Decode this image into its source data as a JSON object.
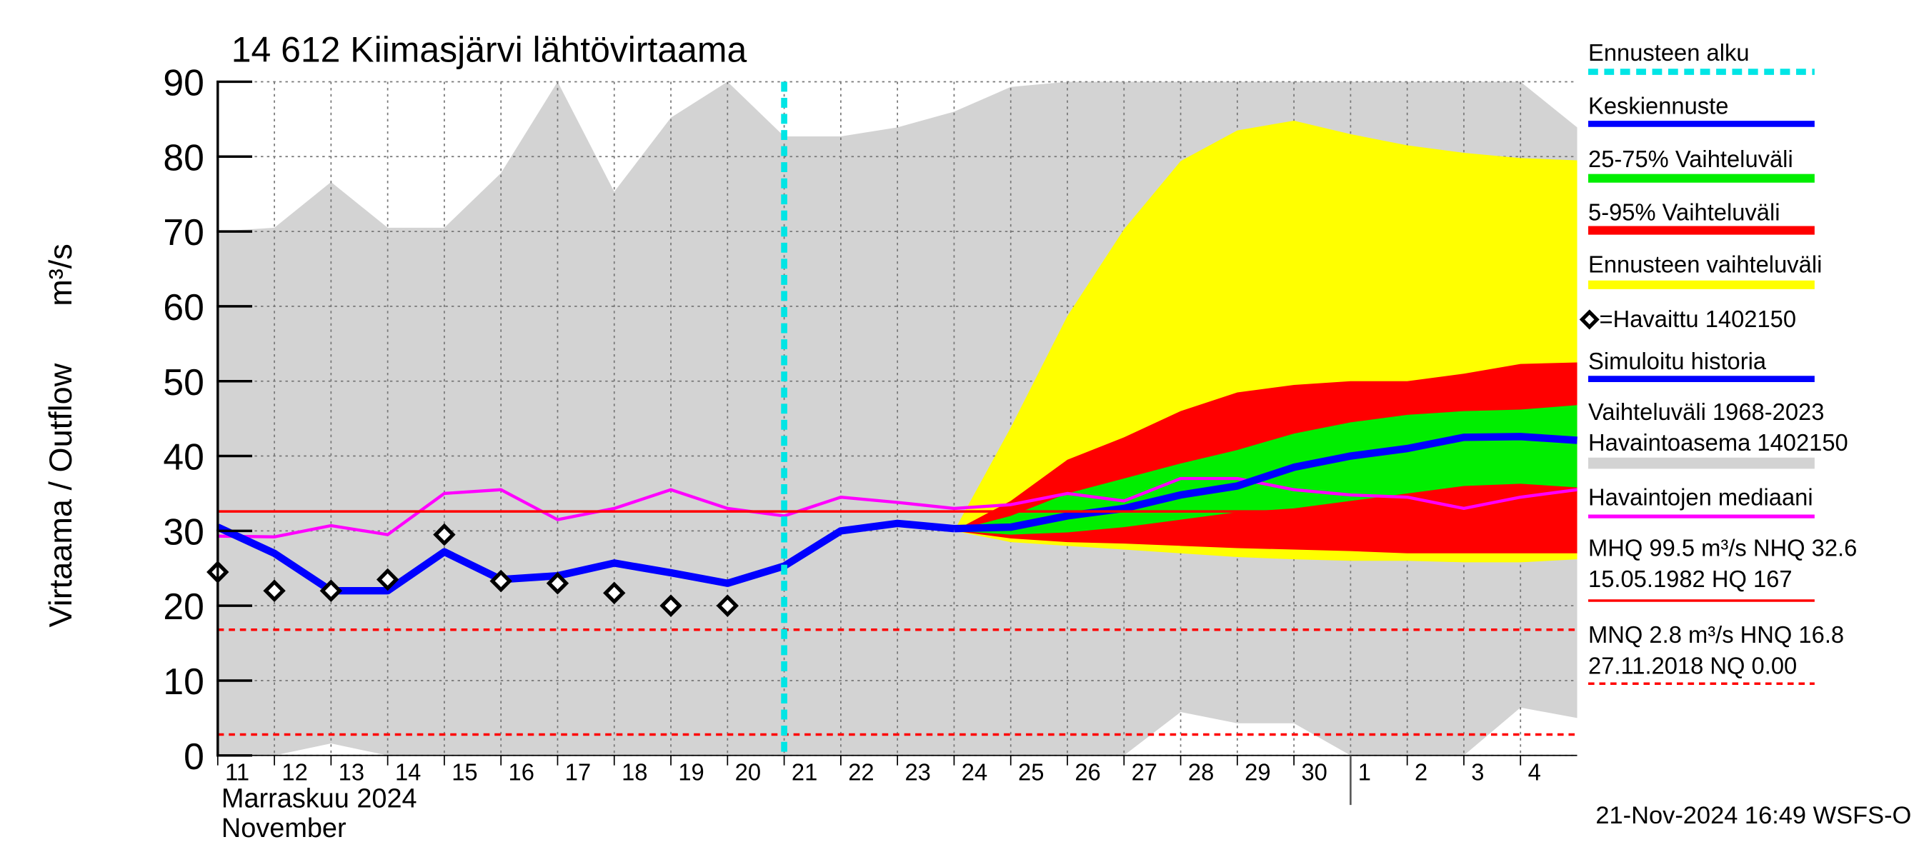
{
  "chart_data": {
    "type": "line",
    "title": "14 612 Kiimasjärvi lähtövirtaama",
    "ylabel": [
      "Virtaama / Outflow",
      "m³/s"
    ],
    "xlabel": [
      "Marraskuu 2024",
      "November"
    ],
    "footer": "21-Nov-2024 16:49 WSFS-O",
    "categories": [
      "11",
      "12",
      "13",
      "14",
      "15",
      "16",
      "17",
      "18",
      "19",
      "20",
      "21",
      "22",
      "23",
      "24",
      "25",
      "26",
      "27",
      "28",
      "29",
      "30",
      "1",
      "2",
      "3",
      "4",
      null
    ],
    "month_break_index": 20,
    "ylim": [
      0,
      90
    ],
    "yticks": [
      0,
      10,
      20,
      30,
      40,
      50,
      60,
      70,
      80,
      90
    ],
    "grid": true,
    "forecast_start": {
      "index": 10,
      "name": "Ennusteen alku",
      "color": "#00e5e5"
    },
    "series": [
      {
        "type": "band",
        "name": [
          "Vaihteluväli 1968-2023",
          " Havaintoasema 1402150"
        ],
        "color": "#d3d3d3",
        "upper": [
          70,
          70.5,
          76.6,
          70.5,
          70.5,
          77.8,
          90,
          75.3,
          85.2,
          90,
          82.7,
          82.7,
          83.9,
          86,
          89.3,
          90,
          90,
          90,
          90,
          90,
          90,
          90,
          90,
          90,
          83.9
        ],
        "lower": [
          0,
          0,
          1.6,
          0,
          0,
          0,
          0,
          0,
          0,
          0,
          0,
          0,
          0,
          0,
          0,
          0,
          0,
          5.8,
          4.3,
          4.3,
          0,
          0,
          0,
          6.4,
          5
        ]
      },
      {
        "type": "band",
        "name": "Ennusteen vaihteluväli",
        "color": "#ffff00",
        "upper": [
          null,
          null,
          null,
          null,
          null,
          null,
          null,
          null,
          null,
          null,
          null,
          null,
          null,
          30,
          43.8,
          58.7,
          70.3,
          79.4,
          83.5,
          84.8,
          83,
          81.5,
          80.5,
          79.8,
          79.5
        ],
        "lower": [
          null,
          null,
          null,
          null,
          null,
          null,
          null,
          null,
          null,
          null,
          null,
          null,
          null,
          30,
          28.5,
          28,
          27.5,
          27,
          26.5,
          26.2,
          26,
          26,
          25.8,
          25.8,
          26.2
        ]
      },
      {
        "type": "band",
        "name": "5-95% Vaihteluväli",
        "color": "#ff0000",
        "upper": [
          null,
          null,
          null,
          null,
          null,
          null,
          null,
          null,
          null,
          null,
          null,
          null,
          null,
          30,
          34,
          39.5,
          42.5,
          46,
          48.5,
          49.5,
          50,
          50,
          51,
          52.3,
          52.5
        ],
        "lower": [
          null,
          null,
          null,
          null,
          null,
          null,
          null,
          null,
          null,
          null,
          null,
          null,
          null,
          30,
          29,
          28.5,
          28.3,
          28,
          27.7,
          27.5,
          27.3,
          27,
          27,
          27,
          27
        ]
      },
      {
        "type": "band",
        "name": "25-75% Vaihteluväli",
        "color": "#00ee00",
        "upper": [
          null,
          null,
          null,
          null,
          null,
          null,
          null,
          null,
          null,
          null,
          null,
          null,
          null,
          30,
          32,
          35,
          37,
          39,
          40.8,
          43,
          44.5,
          45.5,
          46,
          46.2,
          46.8
        ],
        "lower": [
          null,
          null,
          null,
          null,
          null,
          null,
          null,
          null,
          null,
          null,
          null,
          null,
          null,
          30,
          29.5,
          29.8,
          30.5,
          31.5,
          32.5,
          33,
          34,
          35,
          36,
          36.3,
          35.8
        ]
      },
      {
        "type": "line",
        "name": "Havaintojen mediaani",
        "color": "#ff00ff",
        "width": 2.5,
        "values": [
          29.3,
          29.2,
          30.7,
          29.5,
          35,
          35.5,
          31.5,
          33,
          35.5,
          33,
          32,
          34.5,
          33.8,
          33,
          33.5,
          35,
          34,
          37,
          37,
          35.5,
          34.8,
          34.5,
          33,
          34.5,
          35.5
        ]
      },
      {
        "type": "line",
        "name": "Simuloitu historia",
        "color": "#0000ff",
        "width": 6,
        "values": [
          30.5,
          27,
          22,
          22,
          27.2,
          23.5,
          24,
          25.7,
          24.4,
          23,
          25.3,
          30,
          31,
          30.3,
          null,
          null,
          null,
          null,
          null,
          null,
          null,
          null,
          null,
          null,
          null
        ]
      },
      {
        "type": "line",
        "name": "Keskiennuste",
        "color": "#0000ff",
        "width": 6,
        "values": [
          null,
          null,
          null,
          null,
          null,
          null,
          null,
          null,
          null,
          null,
          null,
          null,
          null,
          30.3,
          30.5,
          32,
          33,
          34.8,
          36,
          38.5,
          40,
          41,
          42.5,
          42.6,
          42.1
        ]
      },
      {
        "type": "scatter",
        "name": "=Havaittu 1402150",
        "color": "#000000",
        "values": [
          24.5,
          22,
          22,
          23.5,
          29.5,
          23.3,
          23,
          21.7,
          20,
          20,
          null,
          null,
          null,
          null,
          null,
          null,
          null,
          null,
          null,
          null,
          null,
          null,
          null,
          null,
          null
        ]
      }
    ],
    "reference_lines": [
      {
        "value": 32.6,
        "color": "#ff0000",
        "style": "solid",
        "label": [
          "MHQ 99.5 m³/s NHQ 32.6",
          "15.05.1982 HQ  167"
        ]
      },
      {
        "value": 16.8,
        "color": "#ff0000",
        "style": "dashed",
        "label": [
          "MNQ  2.8 m³/s HNQ 16.8",
          "27.11.2018 NQ 0.00"
        ]
      },
      {
        "value": 2.8,
        "color": "#ff0000",
        "style": "dashed"
      }
    ]
  }
}
